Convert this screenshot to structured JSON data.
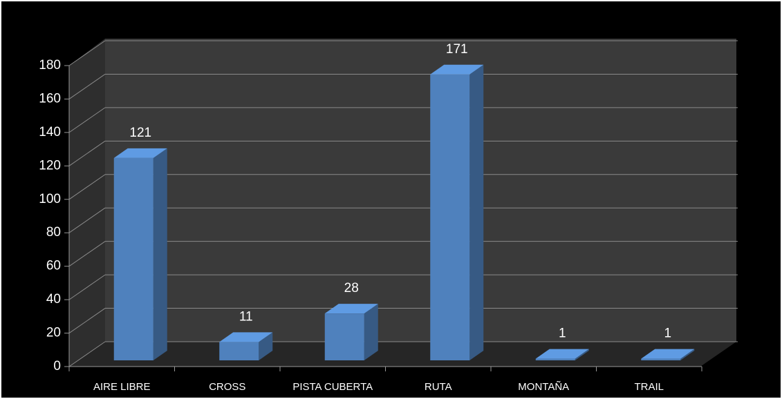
{
  "chart_data": {
    "type": "bar3d",
    "categories": [
      "AIRE LIBRE",
      "CROSS",
      "PISTA CUBERTA",
      "RUTA",
      "MONTAÑA",
      "TRAIL"
    ],
    "values": [
      121,
      11,
      28,
      171,
      1,
      1
    ],
    "color": "#4f81bd",
    "ylim": [
      0,
      180
    ],
    "yticks": [
      0,
      20,
      40,
      60,
      80,
      100,
      120,
      140,
      160,
      180
    ],
    "grid": true
  }
}
